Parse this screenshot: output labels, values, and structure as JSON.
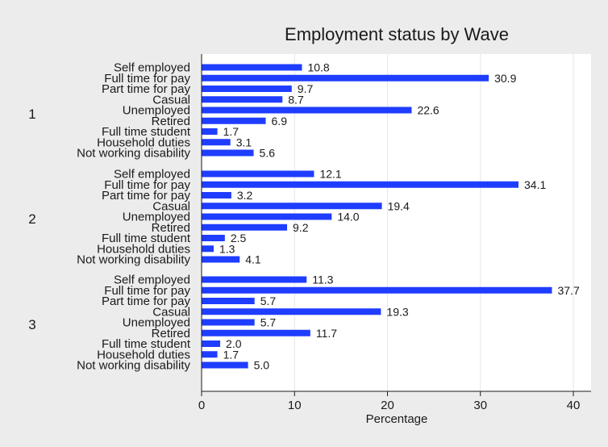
{
  "chart_data": {
    "type": "bar",
    "orientation": "horizontal",
    "title": "Employment status by Wave",
    "xlabel": "Percentage",
    "ylabel": "",
    "xlim": [
      0,
      40
    ],
    "xticks": [
      0,
      10,
      20,
      30,
      40
    ],
    "grid": "vertical",
    "legend": "none",
    "bar_color": "#1f3dff",
    "groups": [
      {
        "label": "1",
        "categories": [
          "Self employed",
          "Full time for pay",
          "Part time for pay",
          "Casual",
          "Unemployed",
          "Retired",
          "Full time student",
          "Household duties",
          "Not working disability"
        ],
        "values": [
          10.8,
          30.9,
          9.7,
          8.7,
          22.6,
          6.9,
          1.7,
          3.1,
          5.6
        ],
        "value_labels": [
          "10.8",
          "30.9",
          "9.7",
          "8.7",
          "22.6",
          "6.9",
          "1.7",
          "3.1",
          "5.6"
        ]
      },
      {
        "label": "2",
        "categories": [
          "Self employed",
          "Full time for pay",
          "Part time for pay",
          "Casual",
          "Unemployed",
          "Retired",
          "Full time student",
          "Household duties",
          "Not working disability"
        ],
        "values": [
          12.1,
          34.1,
          3.2,
          19.4,
          14.0,
          9.2,
          2.5,
          1.3,
          4.1
        ],
        "value_labels": [
          "12.1",
          "34.1",
          "3.2",
          "19.4",
          "14.0",
          "9.2",
          "2.5",
          "1.3",
          "4.1"
        ]
      },
      {
        "label": "3",
        "categories": [
          "Self employed",
          "Full time for pay",
          "Part time for pay",
          "Casual",
          "Unemployed",
          "Retired",
          "Full time student",
          "Household duties",
          "Not working disability"
        ],
        "values": [
          11.3,
          37.7,
          5.7,
          19.3,
          5.7,
          11.7,
          2.0,
          1.7,
          5.0
        ],
        "value_labels": [
          "11.3",
          "37.7",
          "5.7",
          "19.3",
          "5.7",
          "11.7",
          "2.0",
          "1.7",
          "5.0"
        ]
      }
    ]
  }
}
